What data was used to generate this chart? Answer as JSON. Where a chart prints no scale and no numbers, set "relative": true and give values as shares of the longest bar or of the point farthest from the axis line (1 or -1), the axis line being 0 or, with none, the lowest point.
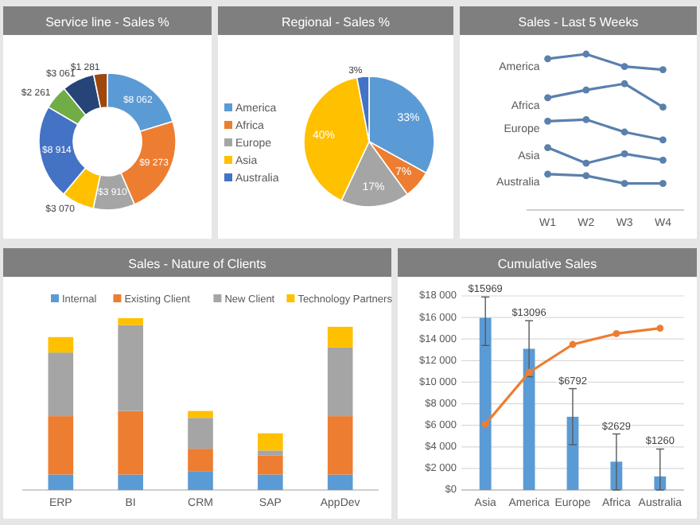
{
  "chart_data": [
    {
      "type": "donut",
      "title": "Service line - Sales  %",
      "categories": [
        null,
        null,
        null,
        null,
        null,
        null,
        null,
        null
      ],
      "values": [
        8062,
        9273,
        3910,
        3070,
        8914,
        2261,
        3061,
        1281
      ],
      "value_labels": [
        "$8 062",
        "$9 273",
        "$3 910",
        "$3 070",
        "$8 914",
        "$2 261",
        "$3 061",
        "$1 281"
      ],
      "colors": [
        "#5b9bd5",
        "#ed7d31",
        "#a5a5a5",
        "#ffc000",
        "#4472c4",
        "#70ad47",
        "#264478",
        "#9e480e"
      ]
    },
    {
      "type": "pie",
      "title": "Regional - Sales  %",
      "categories": [
        "America",
        "Africa",
        "Europe",
        "Asia",
        "Australia"
      ],
      "values": [
        33,
        7,
        17,
        40,
        3
      ],
      "value_labels": [
        "33%",
        "7%",
        "17%",
        "40%",
        "3%"
      ],
      "colors": [
        "#5b9bd5",
        "#ed7d31",
        "#a5a5a5",
        "#ffc000",
        "#4472c4"
      ],
      "legend": "left"
    },
    {
      "type": "line",
      "title": "Sales  - Last 5 Weeks",
      "categories": [
        "W1",
        "W2",
        "W3",
        "W4"
      ],
      "relative": true,
      "marker": "circle",
      "series": [
        {
          "name": "America",
          "color": "#5a80ad",
          "values": [
            0.97,
            1.0,
            0.92,
            0.9
          ]
        },
        {
          "name": "Africa",
          "color": "#5a80ad",
          "values": [
            0.72,
            0.77,
            0.81,
            0.66
          ]
        },
        {
          "name": "Europe",
          "color": "#5a80ad",
          "values": [
            0.57,
            0.58,
            0.5,
            0.45
          ]
        },
        {
          "name": "Asia",
          "color": "#5a80ad",
          "values": [
            0.4,
            0.3,
            0.36,
            0.32
          ]
        },
        {
          "name": "Australia",
          "color": "#5a80ad",
          "values": [
            0.23,
            0.22,
            0.17,
            0.17
          ]
        }
      ]
    },
    {
      "type": "bar",
      "title": "Sales  - Nature of Clients",
      "categories": [
        "ERP",
        "BI",
        "CRM",
        "SAP",
        "AppDev"
      ],
      "relative": true,
      "stacked": true,
      "legend": "top",
      "series": [
        {
          "name": "Internal",
          "color": "#5b9bd5",
          "values": [
            0.09,
            0.09,
            0.11,
            0.09,
            0.09
          ]
        },
        {
          "name": "Existing Client",
          "color": "#ed7d31",
          "values": [
            0.34,
            0.37,
            0.13,
            0.11,
            0.34
          ]
        },
        {
          "name": "New Client",
          "color": "#a5a5a5",
          "values": [
            0.37,
            0.5,
            0.18,
            0.03,
            0.4
          ]
        },
        {
          "name": "Technology Partners",
          "color": "#ffc000",
          "values": [
            0.09,
            0.04,
            0.04,
            0.1,
            0.12
          ]
        }
      ]
    },
    {
      "type": "bar",
      "title": "Cumulative Sales",
      "categories": [
        "Asia",
        "America",
        "Europe",
        "Africa",
        "Australia"
      ],
      "ylim": [
        0,
        18000
      ],
      "yticks": [
        {
          "value": 0,
          "label": "$0"
        },
        {
          "value": 2000,
          "label": "$2 000"
        },
        {
          "value": 4000,
          "label": "$4 000"
        },
        {
          "value": 6000,
          "label": "$6 000"
        },
        {
          "value": 8000,
          "label": "$8 000"
        },
        {
          "value": 10000,
          "label": "$10 000"
        },
        {
          "value": 12000,
          "label": "$12 000"
        },
        {
          "value": 14000,
          "label": "$14 000"
        },
        {
          "value": 16000,
          "label": "$16 000"
        },
        {
          "value": 18000,
          "label": "$18 000"
        }
      ],
      "grid": "y",
      "series": [
        {
          "type": "bar",
          "color": "#5b9bd5",
          "values": [
            15969,
            13096,
            6792,
            2629,
            1260
          ],
          "value_labels": [
            "$15969",
            "$13096",
            "$6792",
            "$2629",
            "$1260"
          ],
          "errors": [
            [
              13400,
              17900
            ],
            [
              10500,
              15700
            ],
            [
              4200,
              9400
            ],
            [
              0,
              5200
            ],
            [
              0,
              3800
            ]
          ]
        },
        {
          "type": "line",
          "color": "#ed7d31",
          "marker": "circle",
          "values": [
            6100,
            10900,
            13500,
            14500,
            15000
          ]
        }
      ]
    }
  ]
}
